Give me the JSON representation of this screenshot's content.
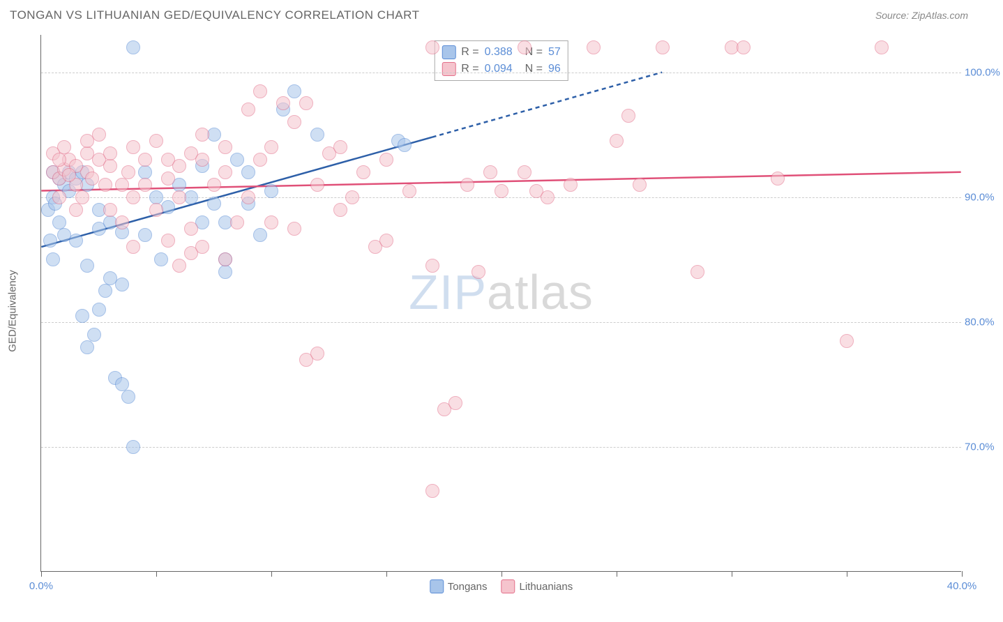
{
  "title": "TONGAN VS LITHUANIAN GED/EQUIVALENCY CORRELATION CHART",
  "source": "Source: ZipAtlas.com",
  "y_axis_label": "GED/Equivalency",
  "watermark": {
    "part1": "ZIP",
    "part2": "atlas"
  },
  "chart": {
    "type": "scatter",
    "xlim": [
      0,
      40
    ],
    "ylim": [
      60,
      103
    ],
    "x_ticks": [
      0,
      5,
      10,
      15,
      20,
      25,
      30,
      35,
      40
    ],
    "x_tick_labels": {
      "0": "0.0%",
      "40": "40.0%"
    },
    "y_ticks": [
      70,
      80,
      90,
      100
    ],
    "y_tick_labels": [
      "70.0%",
      "80.0%",
      "90.0%",
      "100.0%"
    ],
    "background_color": "#ffffff",
    "grid_color": "#cccccc",
    "point_radius": 10,
    "series": [
      {
        "name": "Tongans",
        "fill_color": "#a8c5ea",
        "stroke_color": "#5b8dd6",
        "line_color": "#2d5fa8",
        "R": "0.388",
        "N": "57",
        "trend": {
          "x1": 0,
          "y1": 86,
          "x2": 17,
          "y2": 94.8,
          "x2_dash": 27,
          "y2_dash": 100
        },
        "points": [
          [
            0.3,
            89
          ],
          [
            0.5,
            90
          ],
          [
            0.6,
            89.5
          ],
          [
            0.8,
            91.5
          ],
          [
            0.4,
            86.5
          ],
          [
            1.0,
            91
          ],
          [
            1.2,
            92
          ],
          [
            0.8,
            88
          ],
          [
            1.2,
            90.5
          ],
          [
            0.5,
            85
          ],
          [
            1.5,
            91.5
          ],
          [
            1.8,
            92
          ],
          [
            1.0,
            87
          ],
          [
            2.0,
            91
          ],
          [
            2.5,
            89
          ],
          [
            1.5,
            86.5
          ],
          [
            2.0,
            84.5
          ],
          [
            2.5,
            87.5
          ],
          [
            3.0,
            88
          ],
          [
            3.5,
            87.2
          ],
          [
            2.3,
            79
          ],
          [
            2.8,
            82.5
          ],
          [
            2.5,
            81
          ],
          [
            3.0,
            83.5
          ],
          [
            3.5,
            83
          ],
          [
            1.8,
            80.5
          ],
          [
            2.0,
            78
          ],
          [
            3.2,
            75.5
          ],
          [
            3.5,
            75
          ],
          [
            3.8,
            74
          ],
          [
            4.0,
            102
          ],
          [
            4.5,
            92
          ],
          [
            5.0,
            90
          ],
          [
            5.2,
            85
          ],
          [
            5.5,
            89.2
          ],
          [
            4.0,
            70
          ],
          [
            4.5,
            87
          ],
          [
            6.0,
            91
          ],
          [
            6.5,
            90
          ],
          [
            7.0,
            92.5
          ],
          [
            7.5,
            95
          ],
          [
            8.0,
            88
          ],
          [
            8.5,
            93
          ],
          [
            8.0,
            85
          ],
          [
            9.0,
            89.5
          ],
          [
            9.5,
            87
          ],
          [
            10.0,
            90.5
          ],
          [
            8.0,
            84
          ],
          [
            10.5,
            97
          ],
          [
            11.0,
            98.5
          ],
          [
            9.0,
            92
          ],
          [
            12.0,
            95
          ],
          [
            7.0,
            88
          ],
          [
            7.5,
            89.5
          ],
          [
            15.5,
            94.5
          ],
          [
            15.8,
            94.2
          ],
          [
            0.5,
            92
          ]
        ]
      },
      {
        "name": "Lithuanians",
        "fill_color": "#f5c4cd",
        "stroke_color": "#e36f8a",
        "line_color": "#e05078",
        "R": "0.094",
        "N": "96",
        "trend": {
          "x1": 0,
          "y1": 90.5,
          "x2": 40,
          "y2": 92
        },
        "points": [
          [
            0.5,
            92
          ],
          [
            0.8,
            91.5
          ],
          [
            1.0,
            92.2
          ],
          [
            1.5,
            91
          ],
          [
            1.2,
            93
          ],
          [
            2.0,
            92
          ],
          [
            0.8,
            90
          ],
          [
            2.2,
            91.5
          ],
          [
            2.5,
            93
          ],
          [
            1.5,
            89
          ],
          [
            3.0,
            92.5
          ],
          [
            3.5,
            91
          ],
          [
            1.5,
            92.5
          ],
          [
            2.0,
            93.5
          ],
          [
            4.0,
            94
          ],
          [
            5.0,
            94.5
          ],
          [
            4.5,
            91
          ],
          [
            5.5,
            93
          ],
          [
            2.5,
            95
          ],
          [
            3.0,
            89
          ],
          [
            6.0,
            90
          ],
          [
            6.5,
            93.5
          ],
          [
            5.0,
            89
          ],
          [
            7.0,
            95
          ],
          [
            7.5,
            91
          ],
          [
            4.0,
            86
          ],
          [
            8.0,
            92
          ],
          [
            5.5,
            86.5
          ],
          [
            6.5,
            85.5
          ],
          [
            8.5,
            88
          ],
          [
            9.0,
            97
          ],
          [
            9.5,
            98.5
          ],
          [
            10.0,
            94
          ],
          [
            10.5,
            97.5
          ],
          [
            11.0,
            96
          ],
          [
            9.0,
            90
          ],
          [
            11.5,
            97.5
          ],
          [
            12.0,
            91
          ],
          [
            10.0,
            88
          ],
          [
            12.5,
            93.5
          ],
          [
            11.0,
            87.5
          ],
          [
            13.0,
            89
          ],
          [
            11.5,
            77
          ],
          [
            13.5,
            90
          ],
          [
            14.0,
            92
          ],
          [
            14.5,
            86
          ],
          [
            15.0,
            93
          ],
          [
            12.0,
            77.5
          ],
          [
            16.0,
            90.5
          ],
          [
            15.0,
            86.5
          ],
          [
            17.0,
            66.5
          ],
          [
            17.5,
            73
          ],
          [
            18.0,
            73.5
          ],
          [
            17.0,
            84.5
          ],
          [
            18.5,
            91
          ],
          [
            17.0,
            102
          ],
          [
            19.0,
            84
          ],
          [
            19.5,
            92
          ],
          [
            20.0,
            90.5
          ],
          [
            21.0,
            92
          ],
          [
            21.5,
            90.5
          ],
          [
            21.0,
            102
          ],
          [
            22.0,
            90
          ],
          [
            7.0,
            86
          ],
          [
            8.0,
            85
          ],
          [
            6.0,
            84.5
          ],
          [
            3.5,
            88
          ],
          [
            23.0,
            91
          ],
          [
            24.0,
            102
          ],
          [
            25.0,
            94.5
          ],
          [
            25.5,
            96.5
          ],
          [
            26.0,
            91
          ],
          [
            27.0,
            102
          ],
          [
            28.5,
            84
          ],
          [
            30.0,
            102
          ],
          [
            30.5,
            102
          ],
          [
            32.0,
            91.5
          ],
          [
            35.0,
            78.5
          ],
          [
            36.5,
            102
          ],
          [
            1.0,
            94
          ],
          [
            2.0,
            94.5
          ],
          [
            3.0,
            93.5
          ],
          [
            0.5,
            93.5
          ],
          [
            1.8,
            90
          ],
          [
            4.5,
            93
          ],
          [
            5.5,
            91.5
          ],
          [
            6.0,
            92.5
          ],
          [
            7.0,
            93
          ],
          [
            8.0,
            94
          ],
          [
            9.5,
            93
          ],
          [
            6.5,
            87.5
          ],
          [
            4.0,
            90
          ],
          [
            2.8,
            91
          ],
          [
            3.8,
            92
          ],
          [
            1.2,
            91.8
          ],
          [
            0.8,
            93
          ],
          [
            13.0,
            94
          ]
        ]
      }
    ]
  },
  "legend_top": [
    {
      "swatch_fill": "#a8c5ea",
      "swatch_stroke": "#5b8dd6",
      "r_label": "R =",
      "r_value": "0.388",
      "n_label": "N =",
      "n_value": "57"
    },
    {
      "swatch_fill": "#f5c4cd",
      "swatch_stroke": "#e36f8a",
      "r_label": "R =",
      "r_value": "0.094",
      "n_label": "N =",
      "n_value": "96"
    }
  ],
  "legend_bottom": [
    {
      "swatch_fill": "#a8c5ea",
      "swatch_stroke": "#5b8dd6",
      "label": "Tongans"
    },
    {
      "swatch_fill": "#f5c4cd",
      "swatch_stroke": "#e36f8a",
      "label": "Lithuanians"
    }
  ]
}
